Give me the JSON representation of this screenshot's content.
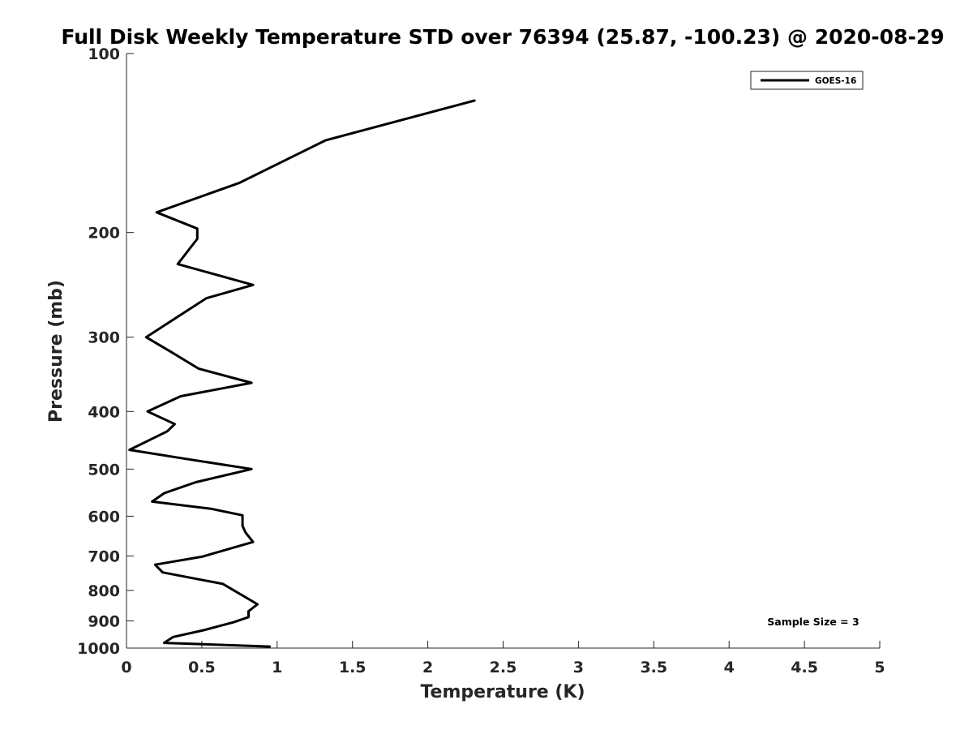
{
  "chart_data": {
    "type": "line",
    "title": "Full Disk Weekly Temperature STD over 76394 (25.87, -100.23) @ 2020-08-29",
    "xlabel": "Temperature (K)",
    "ylabel": "Pressure (mb)",
    "xlim": [
      0,
      5
    ],
    "ylim": [
      100,
      1000
    ],
    "y_scale": "log",
    "y_reversed": true,
    "grid": false,
    "legend_position": "top-right",
    "x_ticks": [
      "0",
      "0.5",
      "1",
      "1.5",
      "2",
      "2.5",
      "3",
      "3.5",
      "4",
      "4.5",
      "5"
    ],
    "y_ticks": [
      "100",
      "200",
      "300",
      "400",
      "500",
      "600",
      "700",
      "800",
      "900",
      "1000"
    ],
    "series": [
      {
        "name": "GOES-16",
        "color": "#000000",
        "x": [
          2.31,
          1.32,
          0.75,
          0.2,
          0.47,
          0.47,
          0.34,
          0.84,
          0.53,
          0.13,
          0.3,
          0.48,
          0.83,
          0.36,
          0.14,
          0.32,
          0.27,
          0.02,
          0.38,
          0.83,
          0.46,
          0.25,
          0.17,
          0.56,
          0.77,
          0.77,
          0.79,
          0.84,
          0.5,
          0.19,
          0.24,
          0.64,
          0.87,
          0.81,
          0.81,
          0.71,
          0.52,
          0.31,
          0.25,
          0.95
        ],
        "y": [
          120,
          140,
          165,
          185,
          197,
          205,
          226,
          245,
          258,
          300,
          318,
          339,
          358,
          377,
          400,
          420,
          432,
          464,
          480,
          500,
          526,
          549,
          567,
          583,
          598,
          623,
          639,
          663,
          702,
          724,
          746,
          780,
          844,
          867,
          887,
          905,
          932,
          958,
          980,
          994
        ]
      }
    ],
    "annotations": [
      "Sample Size = 3"
    ]
  }
}
